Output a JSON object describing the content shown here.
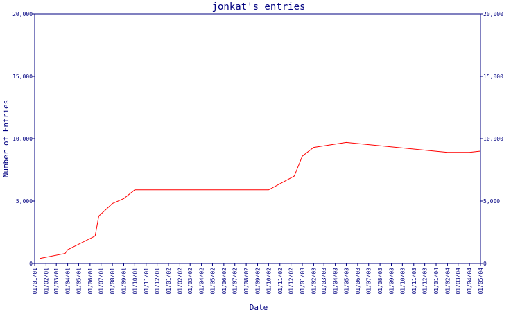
{
  "chart_data": {
    "type": "line",
    "title": "jonkat's entries",
    "xlabel": "Date",
    "ylabel": "Number of Entries",
    "ylim": [
      0,
      20000
    ],
    "y_ticks": [
      "0",
      "5,000",
      "10,000",
      "15,000",
      "20,000"
    ],
    "y_ticks_right": true,
    "grid": false,
    "legend": "none",
    "colors": {
      "line": "#ff0000",
      "axes": "#000080",
      "text": "#000080"
    },
    "x_tick_labels": [
      "01/01/01",
      "01/02/01",
      "01/03/01",
      "01/04/01",
      "01/05/01",
      "01/06/01",
      "01/07/01",
      "01/08/01",
      "01/09/01",
      "01/10/01",
      "01/11/01",
      "01/12/01",
      "01/01/02",
      "01/02/02",
      "01/03/02",
      "01/04/02",
      "01/05/02",
      "01/06/02",
      "01/07/02",
      "01/08/02",
      "01/09/02",
      "01/10/02",
      "01/11/02",
      "01/12/02",
      "01/01/03",
      "01/02/03",
      "01/03/03",
      "01/04/03",
      "01/05/03",
      "01/06/03",
      "01/07/03",
      "01/08/03",
      "01/09/03",
      "01/10/03",
      "01/11/03",
      "01/12/03",
      "01/01/04",
      "01/02/04",
      "01/03/04",
      "01/04/04",
      "01/05/04"
    ],
    "series": [
      {
        "points": [
          {
            "x": "15/01/01",
            "y": 400
          },
          {
            "x": "25/03/01",
            "y": 800
          },
          {
            "x": "01/04/01",
            "y": 1100
          },
          {
            "x": "15/06/01",
            "y": 2200
          },
          {
            "x": "25/06/01",
            "y": 3800
          },
          {
            "x": "01/08/01",
            "y": 4800
          },
          {
            "x": "01/09/01",
            "y": 5200
          },
          {
            "x": "01/10/01",
            "y": 5900
          },
          {
            "x": "01/10/02",
            "y": 5900
          },
          {
            "x": "10/12/02",
            "y": 7000
          },
          {
            "x": "01/01/03",
            "y": 8600
          },
          {
            "x": "01/02/03",
            "y": 9300
          },
          {
            "x": "01/05/03",
            "y": 9700
          },
          {
            "x": "01/02/04",
            "y": 8900
          },
          {
            "x": "01/04/04",
            "y": 8900
          },
          {
            "x": "01/05/04",
            "y": 9000
          }
        ]
      }
    ]
  }
}
